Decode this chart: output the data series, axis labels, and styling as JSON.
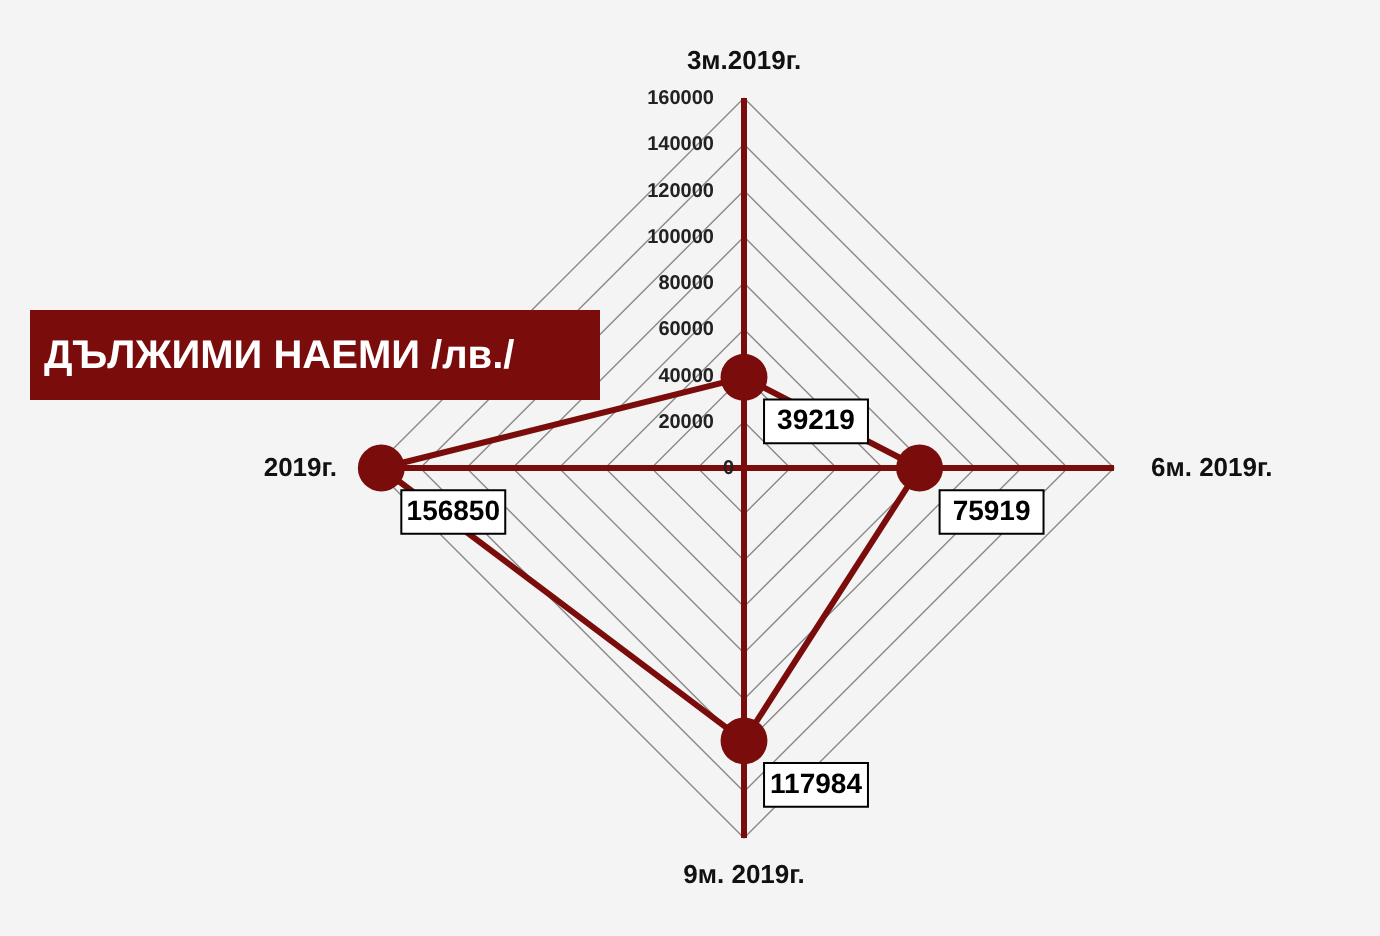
{
  "chart_data": {
    "type": "radar",
    "title": "ДЪЛЖИМИ НАЕМИ /лв./",
    "categories": [
      "3м.2019г.",
      "6м. 2019г.",
      "9м. 2019г.",
      "2019г."
    ],
    "series": [
      {
        "color": "#7b0c0c",
        "values": [
          39219,
          75919,
          117984,
          156850
        ]
      }
    ],
    "ylim": [
      0,
      160000
    ],
    "yticks": [
      0,
      20000,
      40000,
      60000,
      80000,
      100000,
      120000,
      140000,
      160000
    ],
    "grid": true,
    "marker": "circle",
    "data_labels": true
  }
}
